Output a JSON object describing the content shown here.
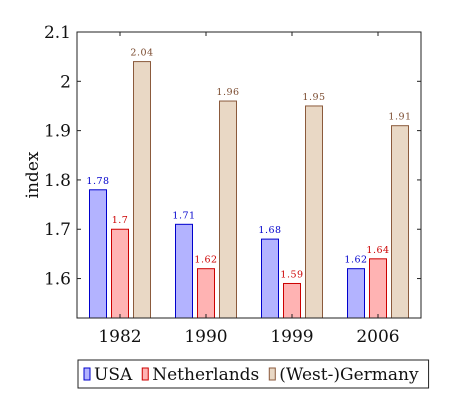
{
  "chart_data": {
    "type": "bar",
    "categories": [
      "1982",
      "1990",
      "1999",
      "2006"
    ],
    "series": [
      {
        "name": "USA",
        "values": [
          1.78,
          1.71,
          1.68,
          1.62
        ],
        "labels": [
          "1.78",
          "1.71",
          "1.68",
          "1.62"
        ],
        "fill": "#b3b3ff",
        "stroke": "#0000cc",
        "label_color": "#0000cc"
      },
      {
        "name": "Netherlands",
        "values": [
          1.7,
          1.62,
          1.59,
          1.64
        ],
        "labels": [
          "1.7",
          "1.62",
          "1.59",
          "1.64"
        ],
        "fill": "#ffb3b3",
        "stroke": "#cc0000",
        "label_color": "#cc0000"
      },
      {
        "name": "(West-)Germany",
        "values": [
          2.04,
          1.96,
          1.95,
          1.91
        ],
        "labels": [
          "2.04",
          "1.96",
          "1.95",
          "1.91"
        ],
        "fill": "#e9d8c5",
        "stroke": "#8b5a3c",
        "label_color": "#7a4a2e"
      }
    ],
    "ylabel": "index",
    "ylim": [
      1.52,
      2.1
    ],
    "yticks": [
      "1.6",
      "1.7",
      "1.8",
      "1.9",
      "2",
      "2.1"
    ],
    "grid": false,
    "legend_position": "bottom"
  }
}
